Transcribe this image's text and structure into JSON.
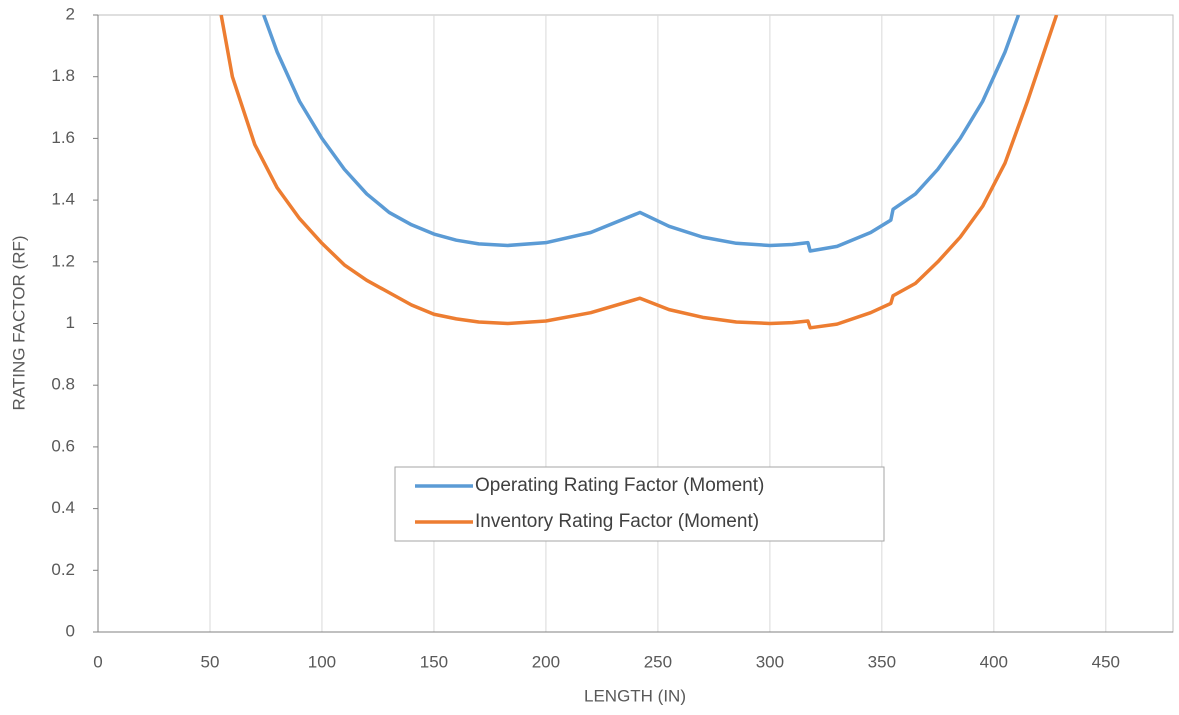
{
  "chart_data": {
    "type": "line",
    "x_label": "LENGTH (IN)",
    "y_label": "RATING FACTOR (RF)",
    "xlim": [
      0,
      480
    ],
    "xticks": [
      0,
      50,
      100,
      150,
      200,
      250,
      300,
      350,
      400,
      450
    ],
    "ylim": [
      0,
      2
    ],
    "yticks": [
      0,
      0.2,
      0.4,
      0.6,
      0.8,
      1,
      1.2,
      1.4,
      1.6,
      1.8,
      2
    ],
    "grid": "x",
    "legend": "center",
    "series": [
      {
        "name": "Operating Rating Factor (Moment)",
        "color": "#5b9bd5",
        "x": [
          74,
          80,
          90,
          100,
          110,
          120,
          130,
          140,
          150,
          160,
          170,
          183,
          200,
          220,
          242,
          255,
          270,
          285,
          300,
          310,
          317,
          318,
          330,
          345,
          354,
          355,
          365,
          375,
          385,
          395,
          405,
          411
        ],
        "values": [
          2.0,
          1.88,
          1.72,
          1.6,
          1.5,
          1.42,
          1.36,
          1.32,
          1.29,
          1.27,
          1.258,
          1.253,
          1.262,
          1.295,
          1.36,
          1.315,
          1.28,
          1.26,
          1.253,
          1.256,
          1.262,
          1.235,
          1.25,
          1.295,
          1.335,
          1.37,
          1.42,
          1.5,
          1.6,
          1.72,
          1.88,
          2.0
        ]
      },
      {
        "name": "Inventory Rating Factor (Moment)",
        "color": "#ed7d31",
        "x": [
          55,
          60,
          70,
          80,
          90,
          100,
          110,
          120,
          130,
          140,
          150,
          160,
          170,
          183,
          200,
          220,
          242,
          255,
          270,
          285,
          300,
          310,
          317,
          318,
          330,
          345,
          354,
          355,
          365,
          375,
          385,
          395,
          405,
          415,
          428
        ],
        "values": [
          2.0,
          1.8,
          1.58,
          1.44,
          1.34,
          1.26,
          1.19,
          1.14,
          1.1,
          1.06,
          1.03,
          1.015,
          1.005,
          1.0,
          1.008,
          1.035,
          1.082,
          1.045,
          1.02,
          1.005,
          1.0,
          1.003,
          1.008,
          0.986,
          0.998,
          1.035,
          1.065,
          1.09,
          1.13,
          1.2,
          1.28,
          1.38,
          1.52,
          1.72,
          2.0
        ]
      }
    ]
  }
}
